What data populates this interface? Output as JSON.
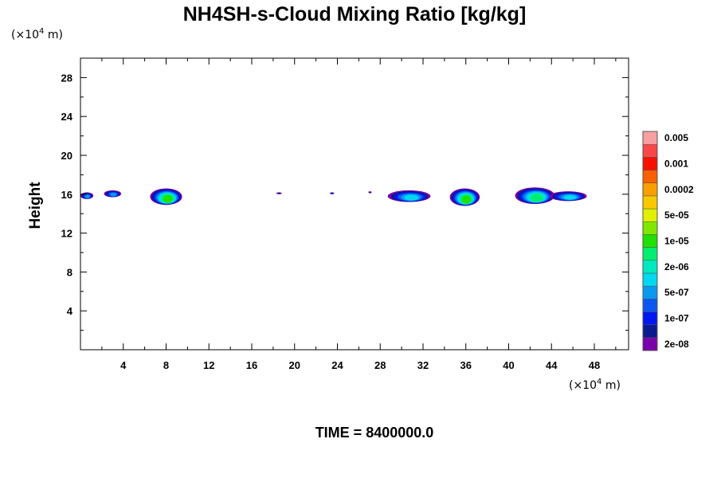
{
  "chart_data": {
    "type": "heatmap",
    "title": "NH4SH-s-Cloud Mixing Ratio [kg/kg]",
    "ylabel": "Height",
    "x_unit_base": "(×10",
    "x_unit_exp": "4",
    "x_unit_tail": " m)",
    "y_unit_base": "(×10",
    "y_unit_exp": "4",
    "y_unit_tail": " m)",
    "footer": "TIME = 8400000.0",
    "xlim": [
      0,
      51.2
    ],
    "ylim": [
      0,
      30
    ],
    "x_ticks": [
      4,
      8,
      12,
      16,
      20,
      24,
      28,
      32,
      36,
      40,
      44,
      48
    ],
    "y_ticks": [
      4,
      8,
      12,
      16,
      20,
      24,
      28
    ],
    "colorbar": {
      "colors": [
        "#7a00aa",
        "#0a1a90",
        "#0018f0",
        "#0a58f0",
        "#0a98f0",
        "#00d8f0",
        "#00e8c0",
        "#00ee70",
        "#20e000",
        "#80e800",
        "#e0f000",
        "#f8c800",
        "#f8a000",
        "#f86000",
        "#f81000",
        "#f84848",
        "#f8a0a0"
      ],
      "labels": [
        "2e-08",
        "1e-07",
        "5e-07",
        "2e-06",
        "1e-05",
        "5e-05",
        "0.0002",
        "0.001",
        "0.005"
      ]
    },
    "clouds": [
      {
        "x0": 0.0,
        "x1": 1.2,
        "ybot": 15.5,
        "ytop": 16.2,
        "peak": 4
      },
      {
        "x0": 2.2,
        "x1": 3.8,
        "ybot": 15.7,
        "ytop": 16.4,
        "peak": 4
      },
      {
        "x0": 6.5,
        "x1": 9.5,
        "ybot": 14.9,
        "ytop": 16.6,
        "peak": 8
      },
      {
        "x0": 18.3,
        "x1": 18.8,
        "ybot": 16.0,
        "ytop": 16.2,
        "peak": 1
      },
      {
        "x0": 23.3,
        "x1": 23.7,
        "ybot": 16.0,
        "ytop": 16.2,
        "peak": 2
      },
      {
        "x0": 26.9,
        "x1": 27.2,
        "ybot": 16.1,
        "ytop": 16.3,
        "peak": 1
      },
      {
        "x0": 28.7,
        "x1": 32.7,
        "ybot": 15.2,
        "ytop": 16.4,
        "peak": 5
      },
      {
        "x0": 34.5,
        "x1": 37.3,
        "ybot": 14.8,
        "ytop": 16.6,
        "peak": 8
      },
      {
        "x0": 40.6,
        "x1": 44.3,
        "ybot": 15.0,
        "ytop": 16.7,
        "peak": 7
      },
      {
        "x0": 43.8,
        "x1": 47.3,
        "ybot": 15.3,
        "ytop": 16.3,
        "peak": 5
      }
    ]
  }
}
